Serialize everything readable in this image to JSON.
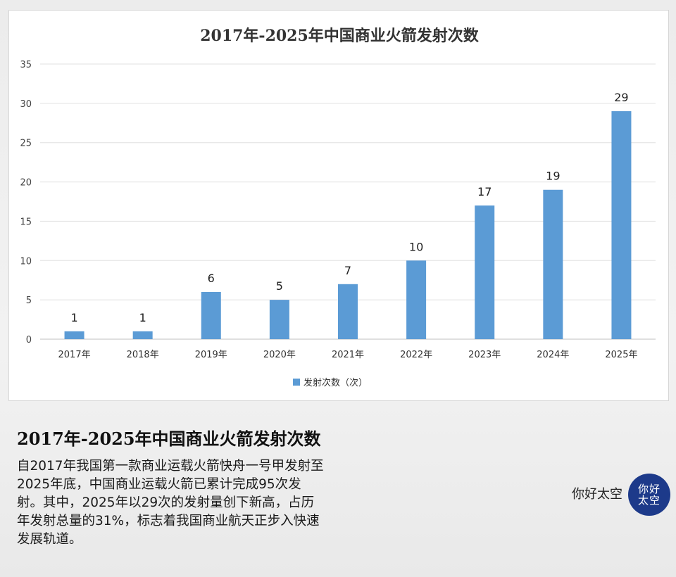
{
  "chart_data": {
    "type": "bar",
    "title": "2017年-2025年中国商业火箭发射次数",
    "categories": [
      "2017年",
      "2018年",
      "2019年",
      "2020年",
      "2021年",
      "2022年",
      "2023年",
      "2024年",
      "2025年"
    ],
    "series": [
      {
        "name": "发射次数（次）",
        "values": [
          1,
          1,
          6,
          5,
          7,
          10,
          17,
          19,
          29
        ]
      }
    ],
    "ylim": [
      0,
      35
    ],
    "yticks": [
      0,
      5,
      10,
      15,
      20,
      25,
      30,
      35
    ],
    "grid": true,
    "legend_position": "bottom",
    "bar_color": "#5b9bd5"
  },
  "info": {
    "title": "2017年-2025年中国商业火箭发射次数",
    "description": "自2017年我国第一款商业运载火箭快舟一号甲发射至2025年底，中国商业运载火箭已累计完成95次发射。其中，2025年以29次的发射量创下新高，占历年发射总量的31%，标志着我国商业航天正步入快速发展轨道。"
  },
  "brand": {
    "name": "你好太空",
    "logo_line1": "你好",
    "logo_line2": "太空",
    "logo_color": "#1d3a8a"
  }
}
